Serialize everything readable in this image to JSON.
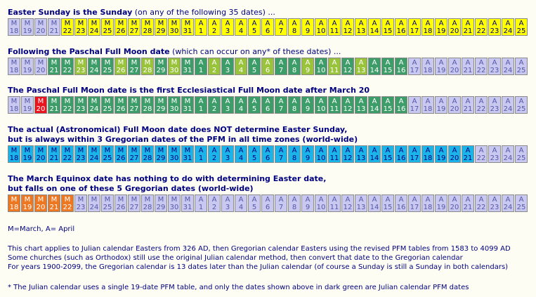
{
  "sections": [
    {
      "title_bold": "Easter Sunday is the Sunday",
      "title_normal": " (on any of the following 35 dates) ..."
    },
    {
      "title_bold": "Following the Paschal Full Moon date",
      "title_normal": " (which can occur on any* of these dates) ..."
    },
    {
      "title_bold": "The Paschal Full Moon date is the first Ecclesiastical Full Moon date after March 20",
      "title_normal": ""
    },
    {
      "title_bold": "The actual (Astronomical) Full Moon date does NOT determine Easter Sunday,",
      "title_line2": "but is always within 3 Gregorian dates of the PFM in all time zones (world-wide)"
    },
    {
      "title_bold": "The March Equinox date has nothing to do with determining Easter date,",
      "title_line2": "but falls on one of these 5 Gregorian dates (world-wide)"
    }
  ],
  "dates": [
    {
      "m": "M",
      "d": "18"
    },
    {
      "m": "M",
      "d": "19"
    },
    {
      "m": "M",
      "d": "20"
    },
    {
      "m": "M",
      "d": "21"
    },
    {
      "m": "M",
      "d": "22"
    },
    {
      "m": "M",
      "d": "23"
    },
    {
      "m": "M",
      "d": "24"
    },
    {
      "m": "M",
      "d": "25"
    },
    {
      "m": "M",
      "d": "26"
    },
    {
      "m": "M",
      "d": "27"
    },
    {
      "m": "M",
      "d": "28"
    },
    {
      "m": "M",
      "d": "29"
    },
    {
      "m": "M",
      "d": "30"
    },
    {
      "m": "M",
      "d": "31"
    },
    {
      "m": "A",
      "d": "1"
    },
    {
      "m": "A",
      "d": "2"
    },
    {
      "m": "A",
      "d": "3"
    },
    {
      "m": "A",
      "d": "4"
    },
    {
      "m": "A",
      "d": "5"
    },
    {
      "m": "A",
      "d": "6"
    },
    {
      "m": "A",
      "d": "7"
    },
    {
      "m": "A",
      "d": "8"
    },
    {
      "m": "A",
      "d": "9"
    },
    {
      "m": "A",
      "d": "10"
    },
    {
      "m": "A",
      "d": "11"
    },
    {
      "m": "A",
      "d": "12"
    },
    {
      "m": "A",
      "d": "13"
    },
    {
      "m": "A",
      "d": "14"
    },
    {
      "m": "A",
      "d": "15"
    },
    {
      "m": "A",
      "d": "16"
    },
    {
      "m": "A",
      "d": "17"
    },
    {
      "m": "A",
      "d": "18"
    },
    {
      "m": "A",
      "d": "19"
    },
    {
      "m": "A",
      "d": "20"
    },
    {
      "m": "A",
      "d": "21"
    },
    {
      "m": "A",
      "d": "22"
    },
    {
      "m": "A",
      "d": "23"
    },
    {
      "m": "A",
      "d": "24"
    },
    {
      "m": "A",
      "d": "25"
    }
  ],
  "colors": {
    "grey": "#c8c8f0",
    "yellow": "#ffff00",
    "green": "#3c9d68",
    "lightgreen": "#9ac33c",
    "red": "#e8141e",
    "blue": "#1ab4e8",
    "orange": "#ee7722"
  },
  "row_colors": [
    "ggggyyyyyyyyyyyyyyyyyyyyyyyyyyyyyyyyyyy",
    "gggGGLGGLGLGLGGLGLGLGGLGLGLGGGggggggggg",
    "ggRGGGGGGGGGGGGGGGGGGGGGGGGGGGggggggggg",
    "BBBBBBBBBBBBBBBBBBBBBBBBBBBBBBBBBBBgggg",
    "OOOOOgggggggggggggggggggggggggggggggggg"
  ],
  "notes": {
    "legend": "M=March, A= April",
    "line1": "This chart applies to Julian calendar Easters from 326 AD, then Gregorian calendar Easters using the revised PFM tables from 1583 to 4099 AD",
    "line2": "Some churches (such as Orthodox) still use the original Julian calendar method, then convert that date to the Gregorian calendar",
    "line3": "For years 1900-2099, the Gregorian calendar is 13 dates later than the Julian calendar (of course a Sunday is still a Sunday in both calendars)",
    "footnote": "* The Julian calendar uses a single 19-date PFM table, and only the dates shown above in dark green are Julian calendar PFM dates"
  }
}
